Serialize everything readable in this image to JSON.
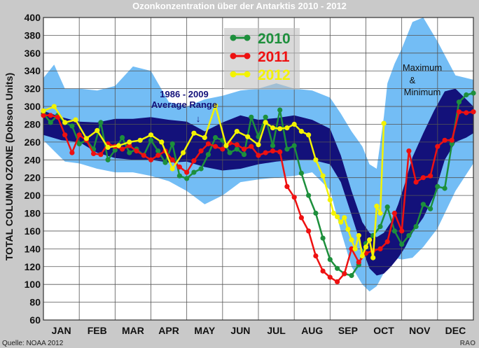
{
  "chart_data": {
    "type": "line",
    "title": "Ozonkonzentration über der Antarktis 2010 - 2012",
    "ylabel": "TOTAL COLUMN OZONE  (Dobson Units)",
    "xlabel": "",
    "ylim": [
      60,
      400
    ],
    "y_ticks": [
      60,
      80,
      100,
      120,
      140,
      160,
      180,
      200,
      220,
      240,
      260,
      280,
      300,
      320,
      340,
      360,
      380,
      400
    ],
    "x_range": [
      0,
      12
    ],
    "months": [
      "JAN",
      "FEB",
      "MAR",
      "APR",
      "MAY",
      "JUN",
      "JUL",
      "AUG",
      "SEP",
      "OCT",
      "NOV",
      "DEC"
    ],
    "grid": true,
    "legend_position": "top-center",
    "source": "Quelle: NOAA 2012",
    "credit": "RAO",
    "annotations": {
      "average_range": [
        "1986 - 2009",
        "Average Range"
      ],
      "arrow": "↓",
      "max_min": [
        "Maximum",
        "&",
        "Minimum"
      ]
    },
    "colors": {
      "background": "#c9c9c9",
      "plot": "#ffffff",
      "max_min_band": "#73bdf5",
      "average_band": "#13117a",
      "series_2010": "#1d8f3c",
      "series_2011": "#ee1111",
      "series_2012": "#f3f300"
    },
    "band_max_min": {
      "x": [
        0,
        0.3,
        0.6,
        1,
        1.5,
        2,
        2.5,
        3,
        3.5,
        4,
        4.5,
        5,
        5.5,
        6,
        6.5,
        7,
        7.5,
        8,
        8.3,
        8.6,
        8.9,
        9.1,
        9.3,
        9.5,
        9.6,
        9.8,
        10,
        10.3,
        10.6,
        11,
        11.5,
        12
      ],
      "upper": [
        332,
        347,
        320,
        320,
        318,
        323,
        345,
        340,
        305,
        300,
        308,
        312,
        318,
        320,
        326,
        320,
        318,
        310,
        292,
        272,
        255,
        235,
        230,
        288,
        326,
        348,
        365,
        395,
        405,
        373,
        335,
        330
      ],
      "lower": [
        262,
        250,
        238,
        236,
        230,
        226,
        226,
        222,
        216,
        205,
        190,
        200,
        215,
        218,
        220,
        222,
        226,
        206,
        160,
        120,
        100,
        92,
        98,
        113,
        125,
        130,
        128,
        130,
        142,
        163,
        205,
        236
      ]
    },
    "band_average": {
      "x": [
        0,
        0.5,
        1,
        1.5,
        2,
        2.5,
        3,
        3.5,
        4,
        4.5,
        5,
        5.5,
        6,
        6.5,
        7,
        7.5,
        8,
        8.3,
        8.6,
        8.9,
        9.1,
        9.3,
        9.5,
        9.7,
        9.9,
        10.1,
        10.3,
        10.6,
        10.9,
        11.2,
        11.5,
        11.8,
        12
      ],
      "upper": [
        295,
        288,
        283,
        282,
        286,
        286,
        288,
        285,
        283,
        272,
        282,
        290,
        285,
        287,
        290,
        285,
        275,
        245,
        205,
        170,
        158,
        153,
        158,
        170,
        190,
        215,
        243,
        270,
        295,
        317,
        320,
        308,
        300
      ],
      "lower": [
        268,
        262,
        260,
        248,
        242,
        240,
        240,
        237,
        238,
        232,
        228,
        230,
        235,
        238,
        240,
        240,
        235,
        215,
        178,
        140,
        118,
        110,
        112,
        120,
        130,
        142,
        158,
        175,
        200,
        240,
        260,
        265,
        270
      ]
    },
    "series": [
      {
        "name": "2010",
        "x": [
          0,
          0.2,
          0.4,
          0.6,
          0.8,
          1,
          1.2,
          1.4,
          1.6,
          1.8,
          2,
          2.2,
          2.4,
          2.6,
          2.8,
          3,
          3.2,
          3.4,
          3.6,
          3.8,
          4,
          4.2,
          4.4,
          4.6,
          4.8,
          5,
          5.2,
          5.4,
          5.6,
          5.8,
          6,
          6.2,
          6.4,
          6.6,
          6.8,
          7,
          7.2,
          7.4,
          7.6,
          7.8,
          8,
          8.2,
          8.4,
          8.6,
          8.8,
          9,
          9.2,
          9.4,
          9.6,
          9.8,
          10,
          10.2,
          10.4,
          10.6,
          10.8,
          11,
          11.2,
          11.4,
          11.6,
          11.8,
          12
        ],
        "y": [
          292,
          282,
          290,
          282,
          278,
          258,
          262,
          252,
          282,
          240,
          251,
          265,
          248,
          252,
          245,
          262,
          250,
          237,
          258,
          222,
          219,
          226,
          230,
          246,
          265,
          262,
          248,
          252,
          246,
          288,
          266,
          288,
          256,
          296,
          252,
          256,
          225,
          200,
          180,
          152,
          128,
          118,
          112,
          110,
          122,
          146,
          155,
          165,
          187,
          160,
          145,
          155,
          165,
          190,
          185,
          210,
          208,
          258,
          305,
          313,
          315
        ]
      },
      {
        "name": "2011",
        "x": [
          0,
          0.2,
          0.4,
          0.6,
          0.8,
          1,
          1.2,
          1.4,
          1.6,
          1.8,
          2,
          2.2,
          2.4,
          2.6,
          2.8,
          3,
          3.2,
          3.4,
          3.6,
          3.8,
          4,
          4.2,
          4.4,
          4.6,
          4.8,
          5,
          5.2,
          5.4,
          5.6,
          5.8,
          6,
          6.2,
          6.4,
          6.6,
          6.8,
          7,
          7.2,
          7.4,
          7.6,
          7.8,
          8,
          8.2,
          8.4,
          8.6,
          8.8,
          9,
          9.2,
          9.4,
          9.6,
          9.8,
          10,
          10.2,
          10.4,
          10.6,
          10.8,
          11,
          11.2,
          11.4,
          11.6,
          11.8,
          12
        ],
        "y": [
          290,
          290,
          288,
          268,
          248,
          268,
          262,
          247,
          246,
          258,
          255,
          252,
          256,
          250,
          245,
          240,
          245,
          250,
          240,
          232,
          226,
          239,
          250,
          258,
          255,
          252,
          259,
          257,
          252,
          255,
          245,
          248,
          250,
          249,
          210,
          198,
          175,
          160,
          132,
          115,
          108,
          103,
          112,
          140,
          125,
          135,
          138,
          140,
          148,
          180,
          160,
          250,
          215,
          220,
          222,
          255,
          262,
          262,
          294,
          293,
          294
        ]
      },
      {
        "name": "2012",
        "x": [
          0,
          0.3,
          0.6,
          0.9,
          1.2,
          1.5,
          1.8,
          2.1,
          2.4,
          2.7,
          3,
          3.3,
          3.6,
          3.9,
          4.2,
          4.5,
          4.8,
          5.1,
          5.4,
          5.7,
          6,
          6.2,
          6.4,
          6.6,
          6.8,
          7,
          7.2,
          7.4,
          7.6,
          7.8,
          8,
          8.1,
          8.2,
          8.3,
          8.4,
          8.5,
          8.6,
          8.7,
          8.8,
          8.9,
          9,
          9.1,
          9.2,
          9.3,
          9.4,
          9.5
        ],
        "y": [
          295,
          300,
          282,
          285,
          264,
          273,
          254,
          256,
          260,
          262,
          268,
          260,
          230,
          248,
          270,
          265,
          301,
          256,
          272,
          266,
          257,
          282,
          276,
          275,
          276,
          280,
          272,
          268,
          240,
          222,
          195,
          180,
          176,
          170,
          175,
          162,
          150,
          140,
          155,
          132,
          142,
          150,
          130,
          188,
          180,
          281
        ]
      }
    ]
  }
}
